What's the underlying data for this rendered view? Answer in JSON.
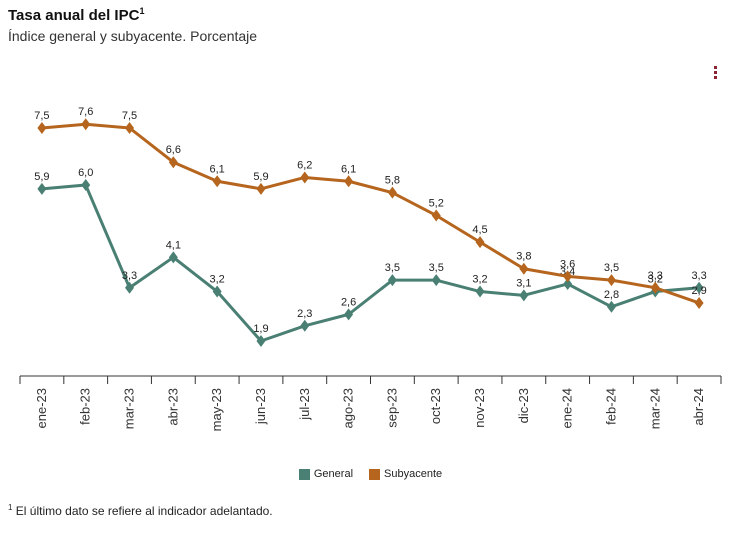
{
  "header": {
    "title": "Tasa anual del IPC",
    "title_sup": "1",
    "subtitle": "Índice general y subyacente. Porcentaje"
  },
  "menu_icon": "more-vertical-icon",
  "footnote": {
    "sup": "1",
    "text": "El último dato se refiere al indicador adelantado."
  },
  "chart_data": {
    "type": "line",
    "categories": [
      "ene-23",
      "feb-23",
      "mar-23",
      "abr-23",
      "may-23",
      "jun-23",
      "jul-23",
      "ago-23",
      "sep-23",
      "oct-23",
      "nov-23",
      "dic-23",
      "ene-24",
      "feb-24",
      "mar-24",
      "abr-24"
    ],
    "series": [
      {
        "name": "General",
        "color": "#4a7f73",
        "values": [
          5.9,
          6.0,
          3.3,
          4.1,
          3.2,
          1.9,
          2.3,
          2.6,
          3.5,
          3.5,
          3.2,
          3.1,
          3.4,
          2.8,
          3.2,
          3.3
        ]
      },
      {
        "name": "Subyacente",
        "color": "#b5651d",
        "values": [
          7.5,
          7.6,
          7.5,
          6.6,
          6.1,
          5.9,
          6.2,
          6.1,
          5.8,
          5.2,
          4.5,
          3.8,
          3.6,
          3.5,
          3.3,
          2.9
        ]
      }
    ],
    "ylim": [
      0,
      9
    ],
    "grid": false,
    "legend": "bottom-center"
  }
}
